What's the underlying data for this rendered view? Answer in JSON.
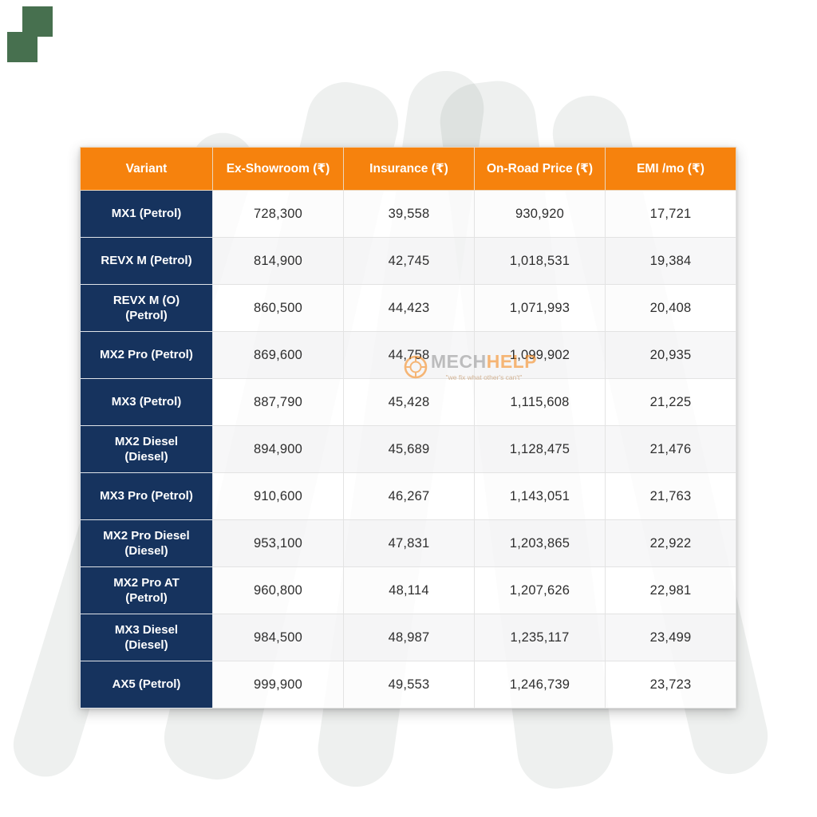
{
  "chart_data": {
    "type": "table",
    "columns": [
      "Variant",
      "Ex-Showroom (₹)",
      "Insurance (₹)",
      "On-Road Price (₹)",
      "EMI /mo (₹)"
    ],
    "rows": [
      {
        "variant": "MX1 (Petrol)",
        "ex_showroom": "728,300",
        "insurance": "39,558",
        "on_road_price": "930,920",
        "emi_per_month": "17,721"
      },
      {
        "variant": "REVX M (Petrol)",
        "ex_showroom": "814,900",
        "insurance": "42,745",
        "on_road_price": "1,018,531",
        "emi_per_month": "19,384"
      },
      {
        "variant": "REVX M (O) (Petrol)",
        "ex_showroom": "860,500",
        "insurance": "44,423",
        "on_road_price": "1,071,993",
        "emi_per_month": "20,408"
      },
      {
        "variant": "MX2 Pro (Petrol)",
        "ex_showroom": "869,600",
        "insurance": "44,758",
        "on_road_price": "1,099,902",
        "emi_per_month": "20,935"
      },
      {
        "variant": "MX3 (Petrol)",
        "ex_showroom": "887,790",
        "insurance": "45,428",
        "on_road_price": "1,115,608",
        "emi_per_month": "21,225"
      },
      {
        "variant": "MX2 Diesel (Diesel)",
        "ex_showroom": "894,900",
        "insurance": "45,689",
        "on_road_price": "1,128,475",
        "emi_per_month": "21,476"
      },
      {
        "variant": "MX3 Pro (Petrol)",
        "ex_showroom": "910,600",
        "insurance": "46,267",
        "on_road_price": "1,143,051",
        "emi_per_month": "21,763"
      },
      {
        "variant": "MX2 Pro Diesel (Diesel)",
        "ex_showroom": "953,100",
        "insurance": "47,831",
        "on_road_price": "1,203,865",
        "emi_per_month": "22,922"
      },
      {
        "variant": "MX2 Pro AT (Petrol)",
        "ex_showroom": "960,800",
        "insurance": "48,114",
        "on_road_price": "1,207,626",
        "emi_per_month": "22,981"
      },
      {
        "variant": "MX3 Diesel (Diesel)",
        "ex_showroom": "984,500",
        "insurance": "48,987",
        "on_road_price": "1,235,117",
        "emi_per_month": "23,499"
      },
      {
        "variant": "AX5 (Petrol)",
        "ex_showroom": "999,900",
        "insurance": "49,553",
        "on_road_price": "1,246,739",
        "emi_per_month": "23,723"
      }
    ],
    "legend_position": "none",
    "grid": "cell-borders"
  },
  "watermark": {
    "brand_gray": "MECH",
    "brand_orange": "HELP",
    "tagline": "\"we fix what other's can't\"",
    "logo_icon": "gear-icon"
  },
  "colors": {
    "header_bg": "#F6820D",
    "variant_column_bg": "#16335E",
    "header_text": "#FFFFFF",
    "cell_text": "#2E2E2E",
    "decor_square_green": "#47704F",
    "watermark_orange": "#F6820D",
    "watermark_gray": "#8F8F8F"
  }
}
